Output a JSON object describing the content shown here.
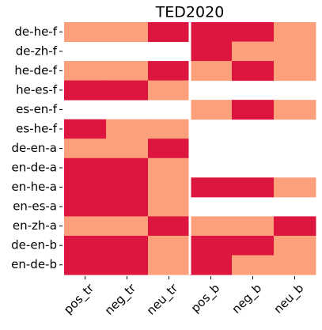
{
  "chart_data": {
    "type": "heatmap",
    "title": "TED2020",
    "columns": [
      "pos_tr",
      "neg_tr",
      "neu_tr",
      "pos_b",
      "neg_b",
      "neu_b"
    ],
    "rows": [
      "de-he-f",
      "de-zh-f",
      "he-de-f",
      "he-es-f",
      "es-en-f",
      "es-he-f",
      "de-en-a",
      "en-de-a",
      "en-he-a",
      "en-es-a",
      "en-zh-a",
      "de-en-b",
      "en-de-b"
    ],
    "values": [
      [
        0,
        0,
        1,
        1,
        1,
        0
      ],
      [
        null,
        null,
        null,
        1,
        0,
        0
      ],
      [
        0,
        0,
        1,
        0,
        1,
        0
      ],
      [
        1,
        1,
        0,
        null,
        null,
        null
      ],
      [
        null,
        null,
        null,
        0,
        1,
        0
      ],
      [
        1,
        0,
        0,
        null,
        null,
        null
      ],
      [
        0,
        0,
        1,
        null,
        null,
        null
      ],
      [
        1,
        1,
        0,
        null,
        null,
        null
      ],
      [
        1,
        1,
        0,
        1,
        1,
        0
      ],
      [
        1,
        1,
        0,
        null,
        null,
        null
      ],
      [
        0,
        0,
        1,
        0,
        0,
        1
      ],
      [
        1,
        1,
        0,
        1,
        1,
        0
      ],
      [
        1,
        1,
        0,
        1,
        0,
        0
      ]
    ],
    "colors": [
      "#fca07c",
      "#dc163f"
    ]
  }
}
